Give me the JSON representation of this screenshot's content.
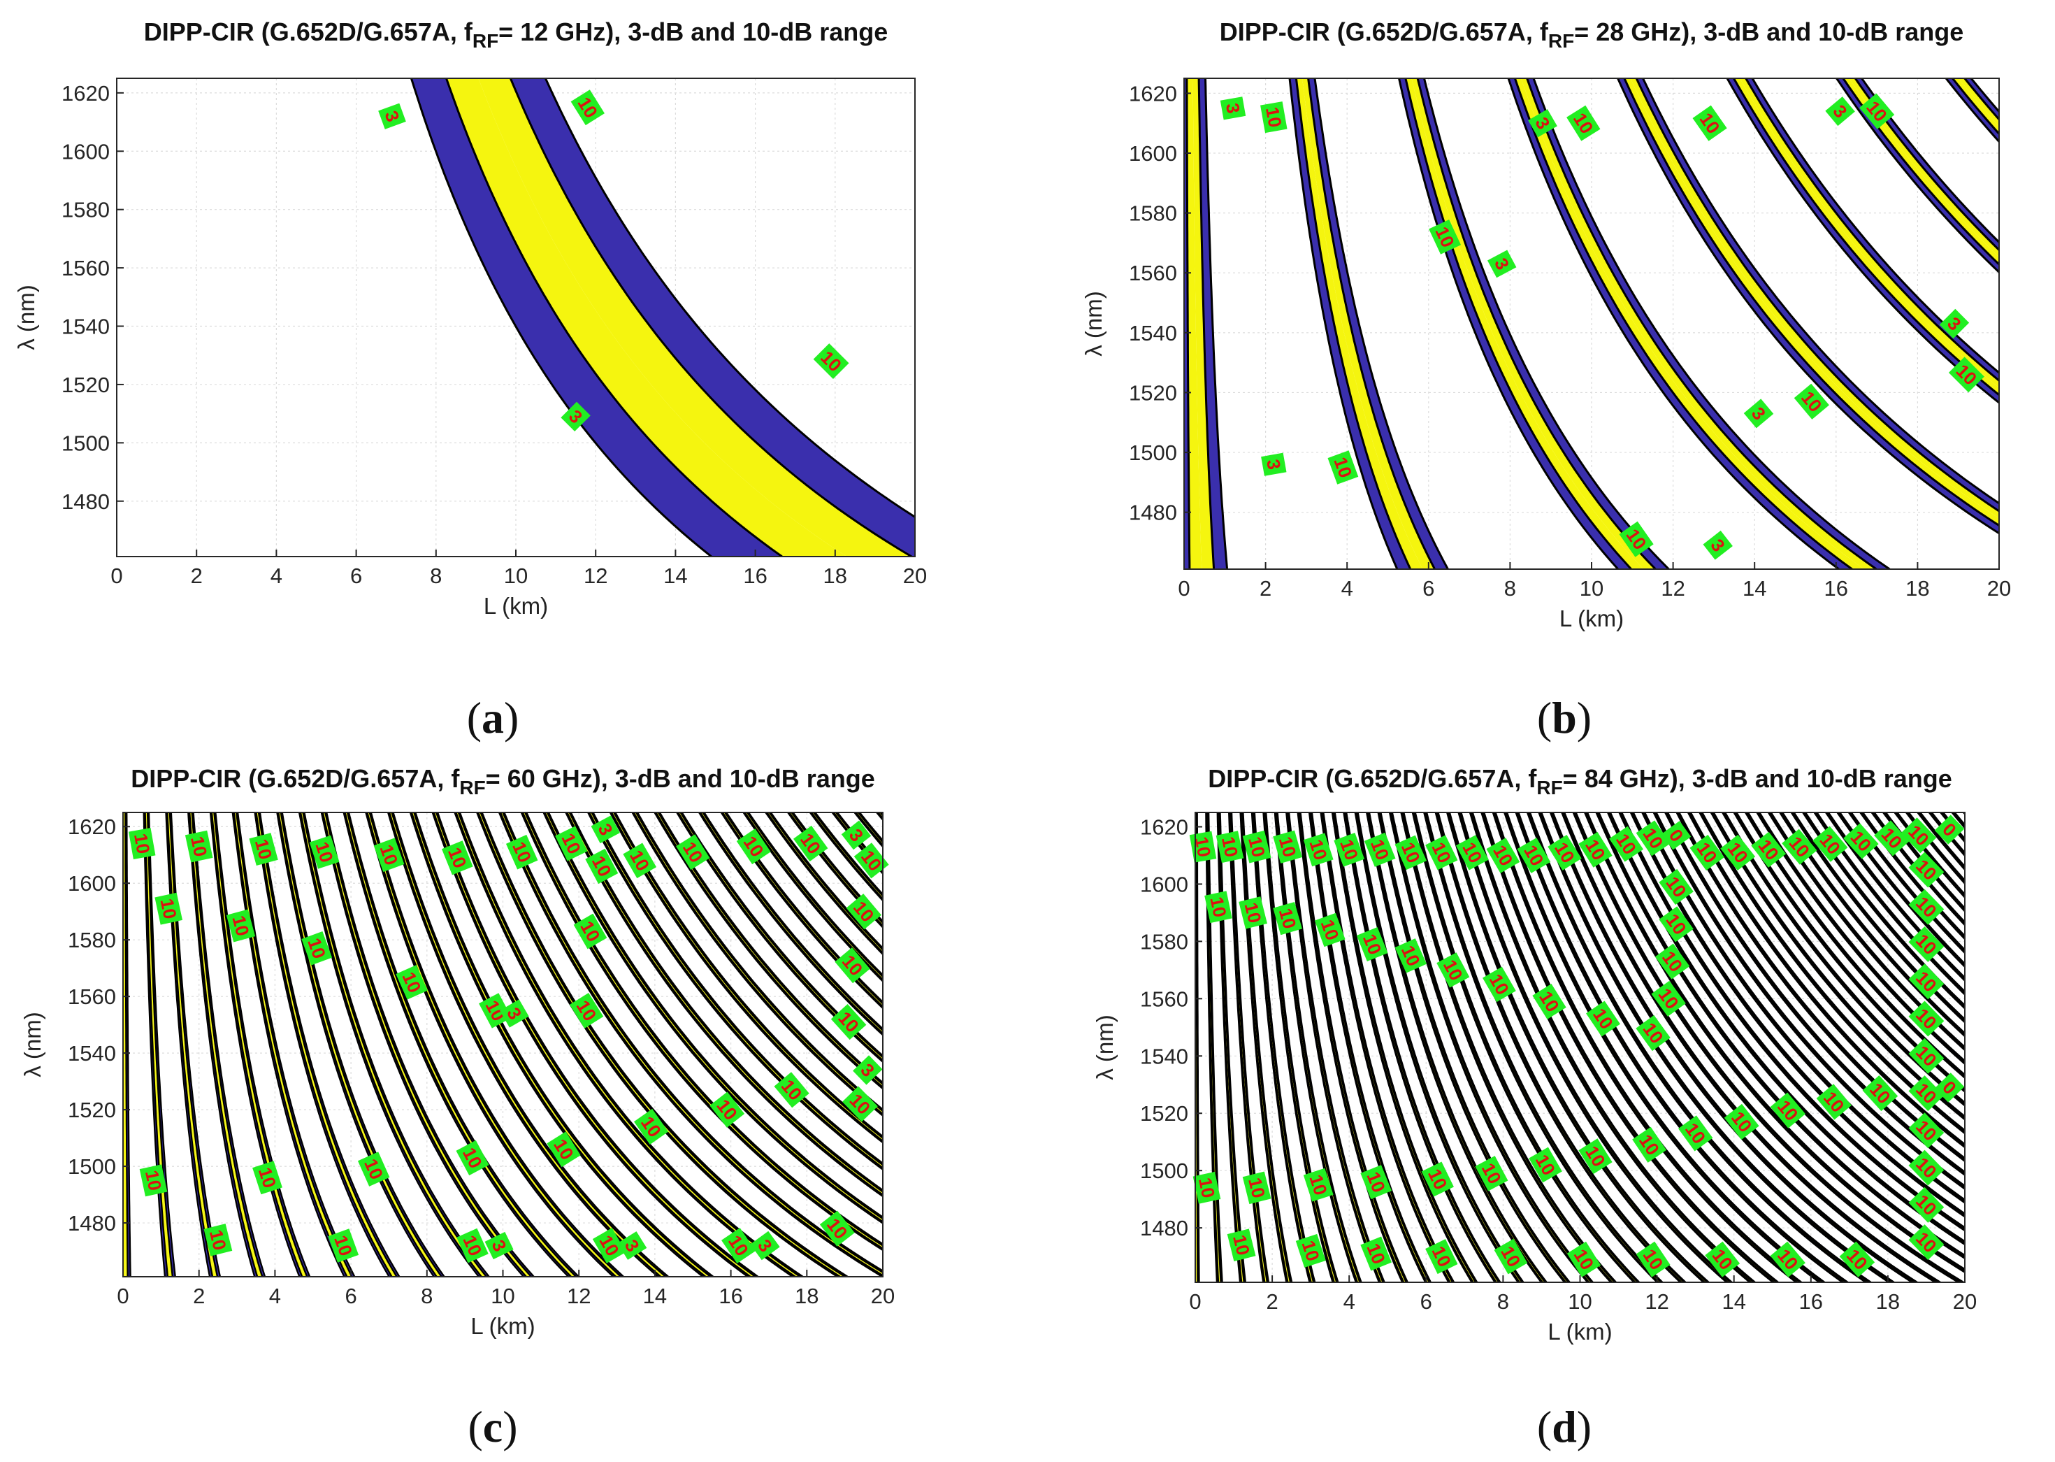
{
  "colors": {
    "band_3_to_10": "#3a2fad",
    "band_over_10": "#f5f50f",
    "band_within_3": "#ffffff",
    "contour_line": "#000000",
    "label_bg": "#22ee22",
    "label_text": "#dd1111",
    "grid": "#dcdcdc",
    "axes": "#262626"
  },
  "chart_data": [
    {
      "type": "contour",
      "panel_label": "a",
      "title_pre": "DIPP-CIR (G.652D/G.657A, f",
      "title_sub": "RF",
      "title_post": "= 12 GHz), 3-dB and 10-dB range",
      "xlabel": "L (km)",
      "ylabel": "λ (nm)",
      "xlim": [
        0,
        20
      ],
      "ylim": [
        1461,
        1625
      ],
      "xticks": [
        0,
        2,
        4,
        6,
        8,
        10,
        12,
        14,
        16,
        18,
        20
      ],
      "yticks": [
        1480,
        1500,
        1520,
        1540,
        1560,
        1580,
        1600,
        1620
      ],
      "f_ghz": 12,
      "contour_levels_db": [
        3,
        10
      ],
      "contour_labels": [
        {
          "text": "3",
          "L": 6.9,
          "lambda": 1612,
          "rot": 70
        },
        {
          "text": "10",
          "L": 11.8,
          "lambda": 1615,
          "rot": 58
        },
        {
          "text": "10",
          "L": 17.9,
          "lambda": 1528,
          "rot": 45
        },
        {
          "text": "3",
          "L": 11.5,
          "lambda": 1509,
          "rot": 45
        }
      ]
    },
    {
      "type": "contour",
      "panel_label": "b",
      "title_pre": "DIPP-CIR (G.652D/G.657A, f",
      "title_sub": "RF",
      "title_post": "= 28 GHz), 3-dB and 10-dB range",
      "xlabel": "L (km)",
      "ylabel": "λ (nm)",
      "xlim": [
        0,
        20
      ],
      "ylim": [
        1461,
        1625
      ],
      "xticks": [
        0,
        2,
        4,
        6,
        8,
        10,
        12,
        14,
        16,
        18,
        20
      ],
      "yticks": [
        1480,
        1500,
        1520,
        1540,
        1560,
        1580,
        1600,
        1620
      ],
      "f_ghz": 28,
      "contour_levels_db": [
        3,
        10
      ],
      "contour_labels": [
        {
          "text": "3",
          "L": 1.2,
          "lambda": 1615,
          "rot": 80
        },
        {
          "text": "10",
          "L": 2.2,
          "lambda": 1612,
          "rot": 80
        },
        {
          "text": "10",
          "L": 6.4,
          "lambda": 1572,
          "rot": 65
        },
        {
          "text": "3",
          "L": 7.8,
          "lambda": 1563,
          "rot": 62
        },
        {
          "text": "3",
          "L": 8.8,
          "lambda": 1610,
          "rot": 60
        },
        {
          "text": "10",
          "L": 9.8,
          "lambda": 1610,
          "rot": 58
        },
        {
          "text": "10",
          "L": 12.9,
          "lambda": 1610,
          "rot": 55
        },
        {
          "text": "3",
          "L": 16.1,
          "lambda": 1614,
          "rot": 50
        },
        {
          "text": "10",
          "L": 17.0,
          "lambda": 1614,
          "rot": 50
        },
        {
          "text": "3",
          "L": 18.9,
          "lambda": 1543,
          "rot": 45
        },
        {
          "text": "10",
          "L": 19.2,
          "lambda": 1526,
          "rot": 45
        },
        {
          "text": "3",
          "L": 14.1,
          "lambda": 1513,
          "rot": 50
        },
        {
          "text": "10",
          "L": 15.4,
          "lambda": 1517,
          "rot": 50
        },
        {
          "text": "3",
          "L": 2.2,
          "lambda": 1496,
          "rot": 80
        },
        {
          "text": "10",
          "L": 3.9,
          "lambda": 1495,
          "rot": 70
        },
        {
          "text": "10",
          "L": 11.1,
          "lambda": 1471,
          "rot": 55
        },
        {
          "text": "3",
          "L": 13.1,
          "lambda": 1469,
          "rot": 52
        }
      ]
    },
    {
      "type": "contour",
      "panel_label": "c",
      "title_pre": "DIPP-CIR (G.652D/G.657A, f",
      "title_sub": "RF",
      "title_post": "= 60 GHz), 3-dB and 10-dB range",
      "xlabel": "L (km)",
      "ylabel": "λ (nm)",
      "xlim": [
        0,
        20
      ],
      "ylim": [
        1461,
        1625
      ],
      "xticks": [
        0,
        2,
        4,
        6,
        8,
        10,
        12,
        14,
        16,
        18,
        20
      ],
      "yticks": [
        1480,
        1500,
        1520,
        1540,
        1560,
        1580,
        1600,
        1620
      ],
      "f_ghz": 60,
      "contour_levels_db": [
        3,
        10
      ],
      "contour_labels": [
        {
          "text": "10",
          "L": 0.5,
          "lambda": 1614,
          "rot": 80
        },
        {
          "text": "10",
          "L": 2.0,
          "lambda": 1613,
          "rot": 78
        },
        {
          "text": "10",
          "L": 3.7,
          "lambda": 1612,
          "rot": 75
        },
        {
          "text": "10",
          "L": 5.3,
          "lambda": 1611,
          "rot": 72
        },
        {
          "text": "10",
          "L": 7.0,
          "lambda": 1610,
          "rot": 70
        },
        {
          "text": "10",
          "L": 8.8,
          "lambda": 1609,
          "rot": 68
        },
        {
          "text": "10",
          "L": 10.5,
          "lambda": 1611,
          "rot": 66
        },
        {
          "text": "10",
          "L": 11.8,
          "lambda": 1614,
          "rot": 64
        },
        {
          "text": "3",
          "L": 12.7,
          "lambda": 1619,
          "rot": 62
        },
        {
          "text": "10",
          "L": 12.6,
          "lambda": 1606,
          "rot": 62
        },
        {
          "text": "10",
          "L": 13.6,
          "lambda": 1608,
          "rot": 60
        },
        {
          "text": "10",
          "L": 15.0,
          "lambda": 1611,
          "rot": 58
        },
        {
          "text": "10",
          "L": 16.6,
          "lambda": 1613,
          "rot": 56
        },
        {
          "text": "10",
          "L": 18.1,
          "lambda": 1614,
          "rot": 54
        },
        {
          "text": "3",
          "L": 19.3,
          "lambda": 1617,
          "rot": 52
        },
        {
          "text": "10",
          "L": 19.7,
          "lambda": 1608,
          "rot": 52
        },
        {
          "text": "10",
          "L": 1.2,
          "lambda": 1591,
          "rot": 78
        },
        {
          "text": "10",
          "L": 3.1,
          "lambda": 1585,
          "rot": 75
        },
        {
          "text": "10",
          "L": 5.1,
          "lambda": 1577,
          "rot": 70
        },
        {
          "text": "10",
          "L": 7.6,
          "lambda": 1565,
          "rot": 66
        },
        {
          "text": "10",
          "L": 9.8,
          "lambda": 1555,
          "rot": 62
        },
        {
          "text": "3",
          "L": 10.3,
          "lambda": 1554,
          "rot": 60
        },
        {
          "text": "10",
          "L": 12.3,
          "lambda": 1583,
          "rot": 60
        },
        {
          "text": "10",
          "L": 12.2,
          "lambda": 1555,
          "rot": 58
        },
        {
          "text": "10",
          "L": 19.5,
          "lambda": 1590,
          "rot": 50
        },
        {
          "text": "10",
          "L": 19.2,
          "lambda": 1571,
          "rot": 50
        },
        {
          "text": "10",
          "L": 19.1,
          "lambda": 1551,
          "rot": 48
        },
        {
          "text": "3",
          "L": 19.6,
          "lambda": 1534,
          "rot": 46
        },
        {
          "text": "10",
          "L": 17.6,
          "lambda": 1527,
          "rot": 50
        },
        {
          "text": "10",
          "L": 19.4,
          "lambda": 1522,
          "rot": 46
        },
        {
          "text": "10",
          "L": 15.9,
          "lambda": 1520,
          "rot": 52
        },
        {
          "text": "10",
          "L": 13.9,
          "lambda": 1514,
          "rot": 55
        },
        {
          "text": "10",
          "L": 11.6,
          "lambda": 1506,
          "rot": 58
        },
        {
          "text": "10",
          "L": 9.2,
          "lambda": 1503,
          "rot": 62
        },
        {
          "text": "10",
          "L": 6.6,
          "lambda": 1499,
          "rot": 66
        },
        {
          "text": "10",
          "L": 3.8,
          "lambda": 1496,
          "rot": 72
        },
        {
          "text": "10",
          "L": 0.8,
          "lambda": 1495,
          "rot": 78
        },
        {
          "text": "10",
          "L": 2.5,
          "lambda": 1474,
          "rot": 76
        },
        {
          "text": "10",
          "L": 5.8,
          "lambda": 1472,
          "rot": 70
        },
        {
          "text": "10",
          "L": 9.2,
          "lambda": 1472,
          "rot": 66
        },
        {
          "text": "3",
          "L": 9.9,
          "lambda": 1472,
          "rot": 64
        },
        {
          "text": "10",
          "L": 12.8,
          "lambda": 1472,
          "rot": 60
        },
        {
          "text": "3",
          "L": 13.4,
          "lambda": 1472,
          "rot": 58
        },
        {
          "text": "10",
          "L": 16.2,
          "lambda": 1472,
          "rot": 56
        },
        {
          "text": "3",
          "L": 16.9,
          "lambda": 1472,
          "rot": 54
        },
        {
          "text": "10",
          "L": 18.8,
          "lambda": 1478,
          "rot": 52
        }
      ]
    },
    {
      "type": "contour",
      "panel_label": "d",
      "title_pre": "DIPP-CIR (G.652D/G.657A, f",
      "title_sub": "RF",
      "title_post": "= 84 GHz), 3-dB and 10-dB range",
      "xlabel": "L (km)",
      "ylabel": "λ (nm)",
      "xlim": [
        0,
        20
      ],
      "ylim": [
        1461,
        1625
      ],
      "xticks": [
        0,
        2,
        4,
        6,
        8,
        10,
        12,
        14,
        16,
        18,
        20
      ],
      "yticks": [
        1480,
        1500,
        1520,
        1540,
        1560,
        1580,
        1600,
        1620
      ],
      "f_ghz": 84,
      "contour_levels_db": [
        3,
        10
      ],
      "contour_labels": [
        {
          "text": "10",
          "L": 0.2,
          "lambda": 1613,
          "rot": 80
        },
        {
          "text": "10",
          "L": 0.9,
          "lambda": 1613,
          "rot": 78
        },
        {
          "text": "10",
          "L": 1.6,
          "lambda": 1613,
          "rot": 76
        },
        {
          "text": "10",
          "L": 2.4,
          "lambda": 1613,
          "rot": 74
        },
        {
          "text": "10",
          "L": 3.2,
          "lambda": 1612,
          "rot": 72
        },
        {
          "text": "10",
          "L": 4.0,
          "lambda": 1612,
          "rot": 70
        },
        {
          "text": "10",
          "L": 4.8,
          "lambda": 1612,
          "rot": 68
        },
        {
          "text": "10",
          "L": 5.6,
          "lambda": 1611,
          "rot": 66
        },
        {
          "text": "10",
          "L": 6.4,
          "lambda": 1611,
          "rot": 64
        },
        {
          "text": "10",
          "L": 7.2,
          "lambda": 1611,
          "rot": 62
        },
        {
          "text": "10",
          "L": 8.0,
          "lambda": 1610,
          "rot": 60
        },
        {
          "text": "10",
          "L": 8.8,
          "lambda": 1610,
          "rot": 60
        },
        {
          "text": "10",
          "L": 9.6,
          "lambda": 1611,
          "rot": 58
        },
        {
          "text": "10",
          "L": 10.4,
          "lambda": 1612,
          "rot": 58
        },
        {
          "text": "10",
          "L": 11.2,
          "lambda": 1614,
          "rot": 56
        },
        {
          "text": "10",
          "L": 11.9,
          "lambda": 1616,
          "rot": 56
        },
        {
          "text": "0",
          "L": 12.5,
          "lambda": 1617,
          "rot": 54
        },
        {
          "text": "10",
          "L": 13.3,
          "lambda": 1611,
          "rot": 54
        },
        {
          "text": "10",
          "L": 14.1,
          "lambda": 1611,
          "rot": 52
        },
        {
          "text": "10",
          "L": 14.9,
          "lambda": 1612,
          "rot": 52
        },
        {
          "text": "10",
          "L": 15.7,
          "lambda": 1613,
          "rot": 50
        },
        {
          "text": "10",
          "L": 16.5,
          "lambda": 1614,
          "rot": 50
        },
        {
          "text": "10",
          "L": 17.3,
          "lambda": 1615,
          "rot": 48
        },
        {
          "text": "10",
          "L": 18.1,
          "lambda": 1616,
          "rot": 48
        },
        {
          "text": "10",
          "L": 18.8,
          "lambda": 1617,
          "rot": 46
        },
        {
          "text": "0",
          "L": 19.6,
          "lambda": 1619,
          "rot": 46
        },
        {
          "text": "10",
          "L": 0.6,
          "lambda": 1592,
          "rot": 78
        },
        {
          "text": "10",
          "L": 1.5,
          "lambda": 1590,
          "rot": 76
        },
        {
          "text": "10",
          "L": 2.4,
          "lambda": 1588,
          "rot": 74
        },
        {
          "text": "10",
          "L": 3.5,
          "lambda": 1584,
          "rot": 70
        },
        {
          "text": "10",
          "L": 4.6,
          "lambda": 1579,
          "rot": 68
        },
        {
          "text": "10",
          "L": 5.6,
          "lambda": 1575,
          "rot": 66
        },
        {
          "text": "10",
          "L": 6.7,
          "lambda": 1570,
          "rot": 62
        },
        {
          "text": "10",
          "L": 7.9,
          "lambda": 1565,
          "rot": 60
        },
        {
          "text": "10",
          "L": 9.2,
          "lambda": 1559,
          "rot": 58
        },
        {
          "text": "10",
          "L": 10.6,
          "lambda": 1553,
          "rot": 56
        },
        {
          "text": "10",
          "L": 11.9,
          "lambda": 1548,
          "rot": 54
        },
        {
          "text": "10",
          "L": 12.3,
          "lambda": 1560,
          "rot": 54
        },
        {
          "text": "10",
          "L": 12.4,
          "lambda": 1573,
          "rot": 54
        },
        {
          "text": "10",
          "L": 12.5,
          "lambda": 1586,
          "rot": 54
        },
        {
          "text": "10",
          "L": 12.5,
          "lambda": 1599,
          "rot": 54
        },
        {
          "text": "10",
          "L": 19.0,
          "lambda": 1605,
          "rot": 46
        },
        {
          "text": "10",
          "L": 19.0,
          "lambda": 1592,
          "rot": 46
        },
        {
          "text": "10",
          "L": 19.0,
          "lambda": 1579,
          "rot": 46
        },
        {
          "text": "10",
          "L": 19.0,
          "lambda": 1566,
          "rot": 46
        },
        {
          "text": "10",
          "L": 19.0,
          "lambda": 1553,
          "rot": 46
        },
        {
          "text": "10",
          "L": 19.0,
          "lambda": 1540,
          "rot": 46
        },
        {
          "text": "10",
          "L": 19.0,
          "lambda": 1527,
          "rot": 46
        },
        {
          "text": "0",
          "L": 19.6,
          "lambda": 1529,
          "rot": 46
        },
        {
          "text": "10",
          "L": 17.8,
          "lambda": 1527,
          "rot": 48
        },
        {
          "text": "10",
          "L": 16.6,
          "lambda": 1524,
          "rot": 50
        },
        {
          "text": "10",
          "L": 15.4,
          "lambda": 1521,
          "rot": 50
        },
        {
          "text": "10",
          "L": 14.2,
          "lambda": 1517,
          "rot": 52
        },
        {
          "text": "10",
          "L": 13.0,
          "lambda": 1513,
          "rot": 54
        },
        {
          "text": "10",
          "L": 11.8,
          "lambda": 1509,
          "rot": 56
        },
        {
          "text": "10",
          "L": 10.4,
          "lambda": 1505,
          "rot": 58
        },
        {
          "text": "10",
          "L": 9.1,
          "lambda": 1502,
          "rot": 60
        },
        {
          "text": "10",
          "L": 7.7,
          "lambda": 1499,
          "rot": 62
        },
        {
          "text": "10",
          "L": 6.3,
          "lambda": 1497,
          "rot": 64
        },
        {
          "text": "10",
          "L": 4.7,
          "lambda": 1496,
          "rot": 68
        },
        {
          "text": "10",
          "L": 3.2,
          "lambda": 1495,
          "rot": 72
        },
        {
          "text": "10",
          "L": 1.6,
          "lambda": 1494,
          "rot": 76
        },
        {
          "text": "10",
          "L": 0.3,
          "lambda": 1494,
          "rot": 78
        },
        {
          "text": "10",
          "L": 19.0,
          "lambda": 1514,
          "rot": 46
        },
        {
          "text": "10",
          "L": 19.0,
          "lambda": 1501,
          "rot": 46
        },
        {
          "text": "10",
          "L": 19.0,
          "lambda": 1488,
          "rot": 46
        },
        {
          "text": "10",
          "L": 19.0,
          "lambda": 1475,
          "rot": 46
        },
        {
          "text": "10",
          "L": 1.2,
          "lambda": 1474,
          "rot": 76
        },
        {
          "text": "10",
          "L": 3.0,
          "lambda": 1472,
          "rot": 72
        },
        {
          "text": "10",
          "L": 4.7,
          "lambda": 1471,
          "rot": 68
        },
        {
          "text": "10",
          "L": 6.4,
          "lambda": 1470,
          "rot": 64
        },
        {
          "text": "10",
          "L": 8.2,
          "lambda": 1470,
          "rot": 60
        },
        {
          "text": "10",
          "L": 10.1,
          "lambda": 1469,
          "rot": 58
        },
        {
          "text": "10",
          "L": 11.9,
          "lambda": 1469,
          "rot": 56
        },
        {
          "text": "10",
          "L": 13.7,
          "lambda": 1469,
          "rot": 52
        },
        {
          "text": "10",
          "L": 15.4,
          "lambda": 1469,
          "rot": 50
        },
        {
          "text": "10",
          "L": 17.2,
          "lambda": 1469,
          "rot": 48
        }
      ]
    }
  ]
}
